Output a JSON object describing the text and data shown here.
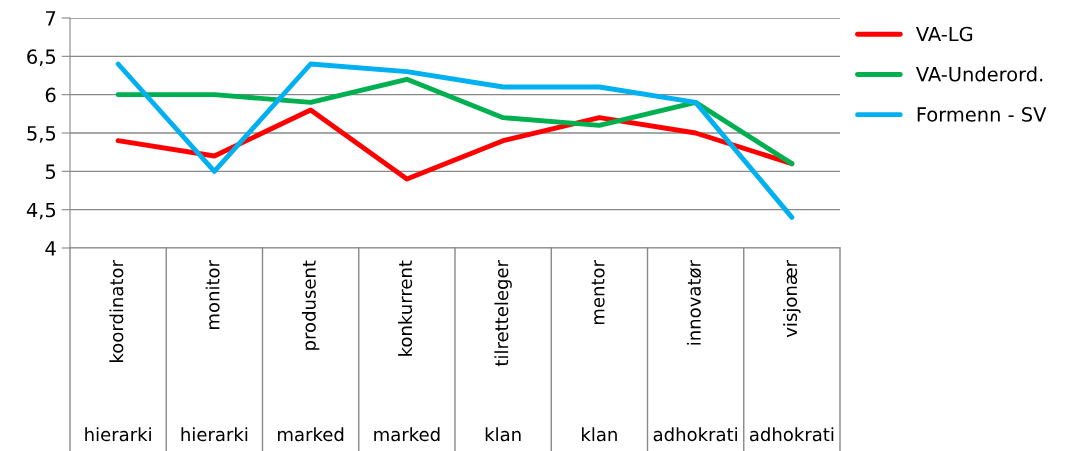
{
  "chart_data": {
    "type": "line",
    "categories": [
      "koordinator",
      "monitor",
      "produsent",
      "konkurrent",
      "tilretteleger",
      "mentor",
      "innovatør",
      "visjonær"
    ],
    "series": [
      {
        "name": "VA-LG",
        "color": "#ff0000",
        "values": [
          5.4,
          5.2,
          5.8,
          4.9,
          5.4,
          5.7,
          5.5,
          5.1
        ]
      },
      {
        "name": "VA-Underord.",
        "color": "#00b050",
        "values": [
          6.0,
          6.0,
          5.9,
          6.2,
          5.7,
          5.6,
          5.9,
          5.1
        ]
      },
      {
        "name": "Formenn - SV",
        "color": "#00b0f0",
        "values": [
          6.4,
          5.0,
          6.4,
          6.3,
          6.1,
          6.1,
          5.9,
          4.4
        ]
      }
    ],
    "annotations": [
      "hierarki",
      "hierarki",
      "marked",
      "marked",
      "klan",
      "klan",
      "adhokrati",
      "adhokrati"
    ],
    "ylim": [
      4,
      7
    ],
    "yticks": [
      4,
      {
        "value": 4.5,
        "label": "4,5"
      },
      5,
      {
        "value": 5.5,
        "label": "5,5"
      },
      6,
      {
        "value": 6.5,
        "label": "6,5"
      },
      7
    ],
    "grid": "y",
    "legend": "top right",
    "marker": "none",
    "line_style": "solid"
  }
}
